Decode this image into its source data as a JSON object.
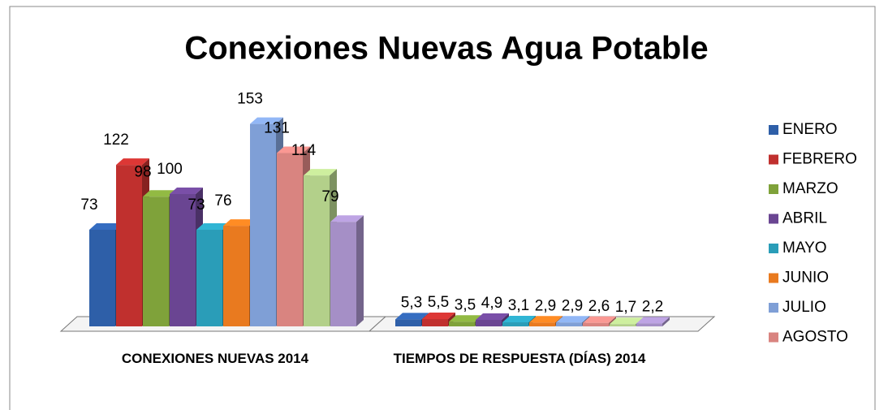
{
  "chart_data": {
    "type": "bar3d",
    "title": "Conexiones Nuevas Agua Potable",
    "categories": [
      "CONEXIONES NUEVAS 2014",
      "TIEMPOS DE RESPUESTA (DÍAS) 2014"
    ],
    "series": [
      {
        "name": "ENERO",
        "color": "#2e5fa8",
        "values": [
          73,
          5.3
        ],
        "value_labels": [
          "73",
          "5,3"
        ]
      },
      {
        "name": "FEBRERO",
        "color": "#c0302e",
        "values": [
          122,
          5.5
        ],
        "value_labels": [
          "122",
          "5,5"
        ]
      },
      {
        "name": "MARZO",
        "color": "#7fa23a",
        "values": [
          98,
          3.5
        ],
        "value_labels": [
          "98",
          "3,5"
        ]
      },
      {
        "name": "ABRIL",
        "color": "#6a4592",
        "values": [
          100,
          4.9
        ],
        "value_labels": [
          "100",
          "4,9"
        ]
      },
      {
        "name": "MAYO",
        "color": "#2a9db8",
        "values": [
          73,
          3.1
        ],
        "value_labels": [
          "73",
          "3,1"
        ]
      },
      {
        "name": "JUNIO",
        "color": "#e97a1f",
        "values": [
          76,
          2.9
        ],
        "value_labels": [
          "76",
          "2,9"
        ]
      },
      {
        "name": "JULIO",
        "color": "#7f9fd6",
        "values": [
          153,
          2.9
        ],
        "value_labels": [
          "153",
          "2,9"
        ]
      },
      {
        "name": "AGOSTO",
        "color": "#d98480",
        "values": [
          131,
          2.6
        ],
        "value_labels": [
          "131",
          "2,6"
        ]
      },
      {
        "name": null,
        "color": "#b3d08a",
        "values": [
          114,
          1.7
        ],
        "value_labels": [
          "114",
          "1,7"
        ]
      },
      {
        "name": null,
        "color": "#a58fc6",
        "values": [
          79,
          2.2
        ],
        "value_labels": [
          "79",
          "2,2"
        ]
      }
    ]
  }
}
